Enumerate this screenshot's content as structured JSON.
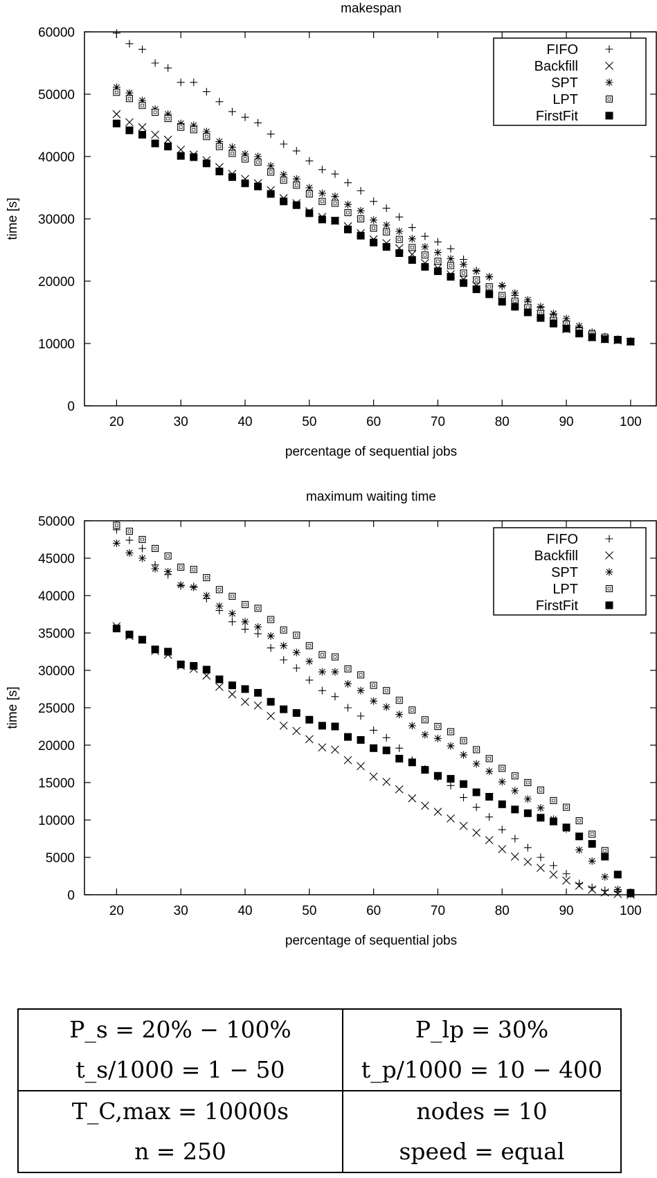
{
  "chart_data": [
    {
      "type": "scatter",
      "title": "makespan",
      "xlabel": "percentage of sequential jobs",
      "ylabel": "time [s]",
      "xlim": [
        15,
        104
      ],
      "ylim": [
        0,
        60000
      ],
      "xticks": [
        20,
        30,
        40,
        50,
        60,
        70,
        80,
        90,
        100
      ],
      "yticks": [
        0,
        10000,
        20000,
        30000,
        40000,
        50000,
        60000
      ],
      "grid": false,
      "legend_position": "top-right",
      "series": [
        {
          "name": "FIFO",
          "marker": "plus",
          "x": [
            20,
            22,
            24,
            26,
            28,
            30,
            32,
            34,
            36,
            38,
            40,
            42,
            44,
            46,
            48,
            50,
            52,
            54,
            56,
            58,
            60,
            62,
            64,
            66,
            68,
            70,
            72,
            74,
            76,
            78,
            80,
            82,
            84,
            86,
            88,
            90,
            92,
            94,
            96,
            98,
            100
          ],
          "y": [
            59800,
            58100,
            57200,
            55000,
            54200,
            51900,
            51900,
            50400,
            48800,
            47200,
            46300,
            45400,
            43600,
            42000,
            40900,
            39300,
            37900,
            37200,
            35800,
            34500,
            32800,
            31700,
            30300,
            28600,
            27200,
            26300,
            25200,
            23500,
            21700,
            20700,
            19200,
            17700,
            16700,
            15800,
            14600,
            13600,
            12600,
            11700,
            11000,
            10600,
            10300
          ]
        },
        {
          "name": "Backfill",
          "marker": "cross",
          "x": [
            20,
            22,
            24,
            26,
            28,
            30,
            32,
            34,
            36,
            38,
            40,
            42,
            44,
            46,
            48,
            50,
            52,
            54,
            56,
            58,
            60,
            62,
            64,
            66,
            68,
            70,
            72,
            74,
            76,
            78,
            80,
            82,
            84,
            86,
            88,
            90,
            92,
            94,
            96,
            98,
            100
          ],
          "y": [
            46800,
            45500,
            44700,
            43500,
            42700,
            41100,
            40300,
            39400,
            38300,
            37200,
            36400,
            35700,
            34600,
            33300,
            32500,
            31200,
            30300,
            29700,
            28800,
            27700,
            26700,
            26100,
            25300,
            24300,
            22900,
            22100,
            21100,
            20300,
            19300,
            18600,
            16900,
            16300,
            15500,
            14700,
            13500,
            12300,
            11800,
            11000,
            10700,
            10500,
            10300
          ]
        },
        {
          "name": "SPT",
          "marker": "star",
          "x": [
            20,
            22,
            24,
            26,
            28,
            30,
            32,
            34,
            36,
            38,
            40,
            42,
            44,
            46,
            48,
            50,
            52,
            54,
            56,
            58,
            60,
            62,
            64,
            66,
            68,
            70,
            72,
            74,
            76,
            78,
            80,
            82,
            84,
            86,
            88,
            90,
            92,
            94,
            96,
            98,
            100
          ],
          "y": [
            51100,
            50200,
            49000,
            47600,
            46800,
            45300,
            45000,
            44000,
            42400,
            41500,
            40400,
            40000,
            38500,
            37100,
            36400,
            35000,
            34100,
            33600,
            32300,
            31300,
            29800,
            29000,
            28000,
            26800,
            25500,
            24600,
            23600,
            22700,
            21600,
            20700,
            19300,
            18100,
            17000,
            15900,
            14800,
            14000,
            12800,
            11800,
            11100,
            10700,
            10400
          ]
        },
        {
          "name": "LPT",
          "marker": "open-square",
          "x": [
            20,
            22,
            24,
            26,
            28,
            30,
            32,
            34,
            36,
            38,
            40,
            42,
            44,
            46,
            48,
            50,
            52,
            54,
            56,
            58,
            60,
            62,
            64,
            66,
            68,
            70,
            72,
            74,
            76,
            78,
            80,
            82,
            84,
            86,
            88,
            90,
            92,
            94,
            96,
            98,
            100
          ],
          "y": [
            50300,
            49300,
            48200,
            47100,
            46100,
            44700,
            44300,
            43200,
            41600,
            40500,
            39600,
            39100,
            37500,
            36200,
            35400,
            34000,
            32800,
            32500,
            31000,
            30000,
            28500,
            27900,
            26700,
            25400,
            24200,
            23200,
            22500,
            21300,
            20200,
            19100,
            17700,
            16800,
            15800,
            14800,
            13700,
            13100,
            12000,
            11500,
            11000,
            10600,
            10300
          ]
        },
        {
          "name": "FirstFit",
          "marker": "filled-square",
          "x": [
            20,
            22,
            24,
            26,
            28,
            30,
            32,
            34,
            36,
            38,
            40,
            42,
            44,
            46,
            48,
            50,
            52,
            54,
            56,
            58,
            60,
            62,
            64,
            66,
            68,
            70,
            72,
            74,
            76,
            78,
            80,
            82,
            84,
            86,
            88,
            90,
            92,
            94,
            96,
            98,
            100
          ],
          "y": [
            45300,
            44200,
            43500,
            42100,
            41600,
            40100,
            39900,
            38900,
            37600,
            36700,
            35700,
            35200,
            34000,
            32800,
            32200,
            30900,
            29900,
            29700,
            28300,
            27300,
            26200,
            25500,
            24500,
            23400,
            22300,
            21600,
            20700,
            19700,
            18700,
            17900,
            16700,
            15900,
            15000,
            14100,
            13200,
            12400,
            11600,
            11000,
            10700,
            10600,
            10300
          ]
        }
      ]
    },
    {
      "type": "scatter",
      "title": "maximum waiting time",
      "xlabel": "percentage of sequential jobs",
      "ylabel": "time [s]",
      "xlim": [
        15,
        104
      ],
      "ylim": [
        0,
        50000
      ],
      "xticks": [
        20,
        30,
        40,
        50,
        60,
        70,
        80,
        90,
        100
      ],
      "yticks": [
        0,
        5000,
        10000,
        15000,
        20000,
        25000,
        30000,
        35000,
        40000,
        45000,
        50000
      ],
      "grid": false,
      "legend_position": "top-right",
      "series": [
        {
          "name": "FIFO",
          "marker": "plus",
          "x": [
            20,
            22,
            24,
            26,
            28,
            30,
            32,
            34,
            36,
            38,
            40,
            42,
            44,
            46,
            48,
            50,
            52,
            54,
            56,
            58,
            60,
            62,
            64,
            66,
            68,
            70,
            72,
            74,
            76,
            78,
            80,
            82,
            84,
            86,
            88,
            90,
            92,
            94,
            96,
            98,
            100
          ],
          "y": [
            48800,
            47400,
            46300,
            44100,
            42800,
            41300,
            41200,
            39600,
            38000,
            36500,
            35500,
            34900,
            33000,
            31400,
            30300,
            28700,
            27300,
            26500,
            25000,
            23900,
            22000,
            21000,
            19600,
            18000,
            16800,
            15700,
            14600,
            13000,
            11700,
            10400,
            8700,
            7500,
            6300,
            5000,
            3900,
            2800,
            1500,
            1000,
            600,
            400,
            200
          ]
        },
        {
          "name": "Backfill",
          "marker": "cross",
          "x": [
            20,
            22,
            24,
            26,
            28,
            30,
            32,
            34,
            36,
            38,
            40,
            42,
            44,
            46,
            48,
            50,
            52,
            54,
            56,
            58,
            60,
            62,
            64,
            66,
            68,
            70,
            72,
            74,
            76,
            78,
            80,
            82,
            84,
            86,
            88,
            90,
            92,
            94,
            96,
            98,
            100
          ],
          "y": [
            35900,
            34600,
            34100,
            32600,
            32100,
            30600,
            30200,
            29300,
            27800,
            26800,
            25800,
            25300,
            23900,
            22600,
            21900,
            20800,
            19700,
            19400,
            18000,
            17200,
            15800,
            15100,
            14100,
            12900,
            11900,
            11100,
            10200,
            9200,
            8300,
            7300,
            6100,
            5100,
            4400,
            3600,
            2700,
            1900,
            1200,
            700,
            300,
            100,
            0
          ]
        },
        {
          "name": "SPT",
          "marker": "star",
          "x": [
            20,
            22,
            24,
            26,
            28,
            30,
            32,
            34,
            36,
            38,
            40,
            42,
            44,
            46,
            48,
            50,
            52,
            54,
            56,
            58,
            60,
            62,
            64,
            66,
            68,
            70,
            72,
            74,
            76,
            78,
            80,
            82,
            84,
            86,
            88,
            90,
            92,
            94,
            96,
            98,
            100
          ],
          "y": [
            47000,
            45700,
            45000,
            43600,
            43200,
            41400,
            41100,
            40000,
            38600,
            37600,
            36500,
            35800,
            34600,
            33300,
            32400,
            31200,
            29800,
            29800,
            28200,
            27300,
            25900,
            25100,
            24100,
            22600,
            21400,
            20900,
            19900,
            18700,
            17500,
            16500,
            15100,
            13900,
            12800,
            11600,
            10100,
            8800,
            6000,
            4500,
            2400,
            700,
            100
          ]
        },
        {
          "name": "LPT",
          "marker": "open-square",
          "x": [
            20,
            22,
            24,
            26,
            28,
            30,
            32,
            34,
            36,
            38,
            40,
            42,
            44,
            46,
            48,
            50,
            52,
            54,
            56,
            58,
            60,
            62,
            64,
            66,
            68,
            70,
            72,
            74,
            76,
            78,
            80,
            82,
            84,
            86,
            88,
            90,
            92,
            94,
            96,
            98,
            100
          ],
          "y": [
            49400,
            48600,
            47500,
            46300,
            45300,
            43800,
            43500,
            42400,
            40800,
            39900,
            38800,
            38300,
            36800,
            35400,
            34700,
            33300,
            32100,
            31800,
            30200,
            29400,
            28000,
            27300,
            26000,
            24700,
            23400,
            22500,
            21800,
            20600,
            19400,
            18200,
            16900,
            15900,
            15000,
            14000,
            12600,
            11700,
            9900,
            8100,
            5900,
            2700,
            300
          ]
        },
        {
          "name": "FirstFit",
          "marker": "filled-square",
          "x": [
            20,
            22,
            24,
            26,
            28,
            30,
            32,
            34,
            36,
            38,
            40,
            42,
            44,
            46,
            48,
            50,
            52,
            54,
            56,
            58,
            60,
            62,
            64,
            66,
            68,
            70,
            72,
            74,
            76,
            78,
            80,
            82,
            84,
            86,
            88,
            90,
            92,
            94,
            96,
            98,
            100
          ],
          "y": [
            35600,
            34800,
            34100,
            32800,
            32500,
            30800,
            30600,
            30100,
            28800,
            28000,
            27500,
            27000,
            25800,
            24800,
            24300,
            23400,
            22600,
            22500,
            21100,
            20700,
            19600,
            19300,
            18200,
            17700,
            16700,
            15900,
            15500,
            14800,
            13700,
            13100,
            12100,
            11400,
            10900,
            10300,
            9800,
            9000,
            7800,
            6800,
            5100,
            2700,
            200
          ]
        }
      ]
    }
  ],
  "parameters": {
    "row1": {
      "left_line1": "P_s = 20% − 100%",
      "left_line2": "t_s/1000 = 1 − 50",
      "right_line1": "P_lp = 30%",
      "right_line2": "t_p/1000 = 10 − 400"
    },
    "row2": {
      "left_line1": "T_C,max = 10000s",
      "left_line2": "n = 250",
      "right_line1": "nodes = 10",
      "right_line2": "speed = equal"
    }
  }
}
